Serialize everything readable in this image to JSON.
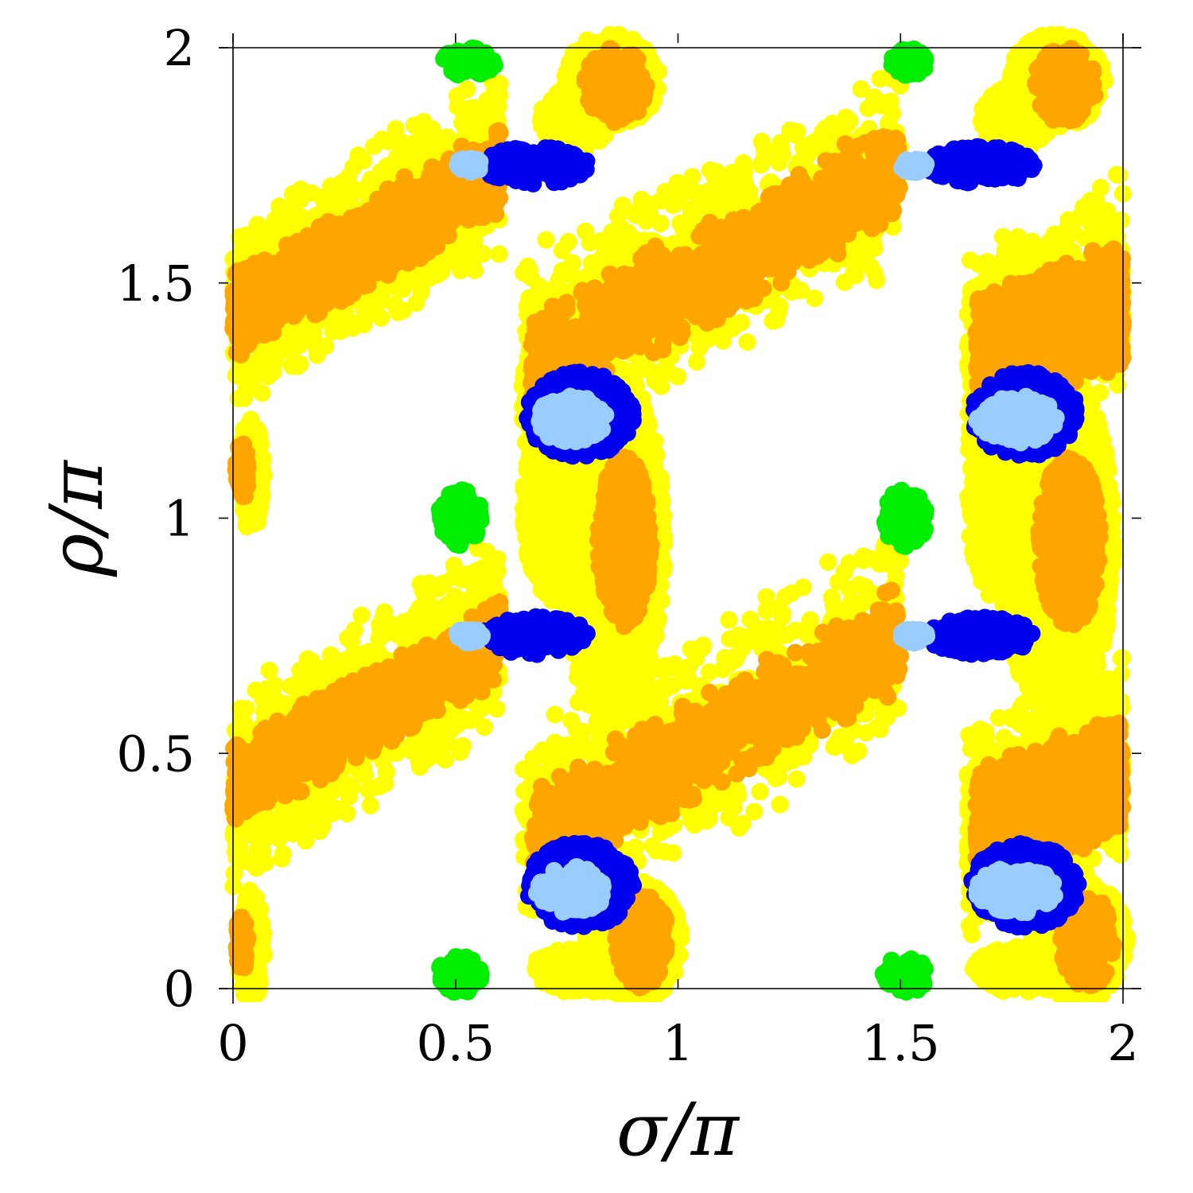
{
  "chart_data": {
    "type": "scatter",
    "title": "",
    "xlabel": "σ/π",
    "ylabel": "ρ/π",
    "xlim": [
      0,
      2
    ],
    "ylim": [
      0,
      2
    ],
    "xticks": [
      "0",
      "0.5",
      "1",
      "1.5",
      "2"
    ],
    "yticks": [
      "0",
      "0.5",
      "1",
      "1.5",
      "2"
    ],
    "xtick_values": [
      0,
      0.5,
      1,
      1.5,
      2
    ],
    "ytick_values": [
      0,
      0.5,
      1,
      1.5,
      2
    ],
    "grid": false,
    "legend": "none",
    "colors": {
      "yellow": "#ffff00",
      "orange": "#ffa500",
      "blue": "#0000ee",
      "light_blue": "#99ccff",
      "green": "#00ee00"
    },
    "series": [
      {
        "color": "#ffff00",
        "regions": [
          {
            "shape": "band",
            "from": [
              0.0,
              0.42
            ],
            "to": [
              0.6,
              0.76
            ],
            "width": 0.22
          },
          {
            "shape": "band",
            "from": [
              0.0,
              1.42
            ],
            "to": [
              0.6,
              1.76
            ],
            "width": 0.22
          },
          {
            "shape": "band",
            "from": [
              0.65,
              0.33
            ],
            "to": [
              1.5,
              0.76
            ],
            "width": 0.24
          },
          {
            "shape": "band",
            "from": [
              0.65,
              1.33
            ],
            "to": [
              1.5,
              1.76
            ],
            "width": 0.24
          },
          {
            "shape": "band",
            "from": [
              1.65,
              0.33
            ],
            "to": [
              2.0,
              0.5
            ],
            "width": 0.24
          },
          {
            "shape": "band",
            "from": [
              1.65,
              1.33
            ],
            "to": [
              2.0,
              1.5
            ],
            "width": 0.24
          },
          {
            "shape": "blob",
            "center": [
              0.9,
              0.1
            ],
            "radius": [
              0.11,
              0.13
            ]
          },
          {
            "shape": "blob",
            "center": [
              0.79,
              0.04
            ],
            "radius": [
              0.12,
              0.05
            ]
          },
          {
            "shape": "blob",
            "center": [
              0.85,
              0.95
            ],
            "radius": [
              0.12,
              0.38
            ]
          },
          {
            "shape": "blob",
            "center": [
              0.73,
              1.02
            ],
            "radius": [
              0.08,
              0.2
            ]
          },
          {
            "shape": "blob",
            "center": [
              0.85,
              1.93
            ],
            "radius": [
              0.11,
              0.1
            ]
          },
          {
            "shape": "blob",
            "center": [
              0.77,
              1.85
            ],
            "radius": [
              0.08,
              0.07
            ]
          },
          {
            "shape": "blob",
            "center": [
              1.9,
              0.1
            ],
            "radius": [
              0.11,
              0.13
            ]
          },
          {
            "shape": "blob",
            "center": [
              1.78,
              0.04
            ],
            "radius": [
              0.12,
              0.05
            ]
          },
          {
            "shape": "blob",
            "center": [
              1.85,
              0.95
            ],
            "radius": [
              0.13,
              0.38
            ]
          },
          {
            "shape": "blob",
            "center": [
              1.73,
              1.02
            ],
            "radius": [
              0.08,
              0.2
            ]
          },
          {
            "shape": "blob",
            "center": [
              1.85,
              1.93
            ],
            "radius": [
              0.11,
              0.1
            ]
          },
          {
            "shape": "blob",
            "center": [
              1.76,
              1.85
            ],
            "radius": [
              0.08,
              0.07
            ]
          },
          {
            "shape": "blob",
            "center": [
              0.04,
              0.09
            ],
            "radius": [
              0.03,
              0.12
            ]
          },
          {
            "shape": "blob",
            "center": [
              0.04,
              1.09
            ],
            "radius": [
              0.03,
              0.12
            ]
          }
        ]
      },
      {
        "color": "#ffa500",
        "regions": [
          {
            "shape": "band",
            "from": [
              0.0,
              0.43
            ],
            "to": [
              0.6,
              0.74
            ],
            "width": 0.1
          },
          {
            "shape": "band",
            "from": [
              0.0,
              1.43
            ],
            "to": [
              0.6,
              1.74
            ],
            "width": 0.1
          },
          {
            "shape": "band",
            "from": [
              0.67,
              0.32
            ],
            "to": [
              1.5,
              0.74
            ],
            "width": 0.12
          },
          {
            "shape": "band",
            "from": [
              0.67,
              1.32
            ],
            "to": [
              1.5,
              1.74
            ],
            "width": 0.12
          },
          {
            "shape": "band",
            "from": [
              1.67,
              0.34
            ],
            "to": [
              2.0,
              0.46
            ],
            "width": 0.14
          },
          {
            "shape": "band",
            "from": [
              1.67,
              1.34
            ],
            "to": [
              2.0,
              1.46
            ],
            "width": 0.14
          },
          {
            "shape": "blob",
            "center": [
              0.92,
              0.1
            ],
            "radius": [
              0.06,
              0.1
            ]
          },
          {
            "shape": "blob",
            "center": [
              0.88,
              0.95
            ],
            "radius": [
              0.06,
              0.18
            ]
          },
          {
            "shape": "blob",
            "center": [
              0.86,
              1.92
            ],
            "radius": [
              0.07,
              0.08
            ]
          },
          {
            "shape": "blob",
            "center": [
              1.92,
              0.1
            ],
            "radius": [
              0.06,
              0.1
            ]
          },
          {
            "shape": "blob",
            "center": [
              1.88,
              0.95
            ],
            "radius": [
              0.07,
              0.18
            ]
          },
          {
            "shape": "blob",
            "center": [
              1.87,
              1.92
            ],
            "radius": [
              0.07,
              0.08
            ]
          },
          {
            "shape": "blob",
            "center": [
              0.02,
              0.1
            ],
            "radius": [
              0.015,
              0.06
            ]
          },
          {
            "shape": "blob",
            "center": [
              0.02,
              1.1
            ],
            "radius": [
              0.015,
              0.06
            ]
          }
        ]
      },
      {
        "color": "#0000ee",
        "regions": [
          {
            "shape": "blob",
            "center": [
              0.78,
              0.22
            ],
            "radius": [
              0.12,
              0.09
            ]
          },
          {
            "shape": "blob",
            "center": [
              0.78,
              1.22
            ],
            "radius": [
              0.12,
              0.09
            ]
          },
          {
            "shape": "blob",
            "center": [
              1.78,
              0.22
            ],
            "radius": [
              0.12,
              0.09
            ]
          },
          {
            "shape": "blob",
            "center": [
              1.78,
              1.22
            ],
            "radius": [
              0.12,
              0.09
            ]
          },
          {
            "shape": "blob",
            "center": [
              0.68,
              0.75
            ],
            "radius": [
              0.12,
              0.04
            ]
          },
          {
            "shape": "blob",
            "center": [
              0.68,
              1.75
            ],
            "radius": [
              0.12,
              0.04
            ]
          },
          {
            "shape": "blob",
            "center": [
              1.68,
              0.75
            ],
            "radius": [
              0.12,
              0.04
            ]
          },
          {
            "shape": "blob",
            "center": [
              1.68,
              1.75
            ],
            "radius": [
              0.12,
              0.04
            ]
          }
        ]
      },
      {
        "color": "#99ccff",
        "regions": [
          {
            "shape": "blob",
            "center": [
              0.76,
              0.21
            ],
            "radius": [
              0.08,
              0.05
            ]
          },
          {
            "shape": "blob",
            "center": [
              0.76,
              1.21
            ],
            "radius": [
              0.08,
              0.05
            ]
          },
          {
            "shape": "blob",
            "center": [
              1.76,
              0.21
            ],
            "radius": [
              0.09,
              0.05
            ]
          },
          {
            "shape": "blob",
            "center": [
              1.76,
              1.21
            ],
            "radius": [
              0.09,
              0.05
            ]
          },
          {
            "shape": "blob",
            "center": [
              0.53,
              0.75
            ],
            "radius": [
              0.03,
              0.015
            ]
          },
          {
            "shape": "blob",
            "center": [
              0.53,
              1.75
            ],
            "radius": [
              0.03,
              0.015
            ]
          },
          {
            "shape": "blob",
            "center": [
              1.53,
              0.75
            ],
            "radius": [
              0.03,
              0.015
            ]
          },
          {
            "shape": "blob",
            "center": [
              1.53,
              1.75
            ],
            "radius": [
              0.03,
              0.015
            ]
          }
        ]
      },
      {
        "color": "#00ee00",
        "regions": [
          {
            "shape": "blob",
            "center": [
              0.51,
              0.03
            ],
            "radius": [
              0.05,
              0.04
            ]
          },
          {
            "shape": "blob",
            "center": [
              0.51,
              1.0
            ],
            "radius": [
              0.05,
              0.06
            ]
          },
          {
            "shape": "blob",
            "center": [
              0.53,
              1.97
            ],
            "radius": [
              0.06,
              0.03
            ]
          },
          {
            "shape": "blob",
            "center": [
              1.51,
              0.03
            ],
            "radius": [
              0.05,
              0.04
            ]
          },
          {
            "shape": "blob",
            "center": [
              1.51,
              1.0
            ],
            "radius": [
              0.05,
              0.06
            ]
          },
          {
            "shape": "blob",
            "center": [
              1.52,
              1.97
            ],
            "radius": [
              0.04,
              0.03
            ]
          }
        ]
      }
    ]
  }
}
